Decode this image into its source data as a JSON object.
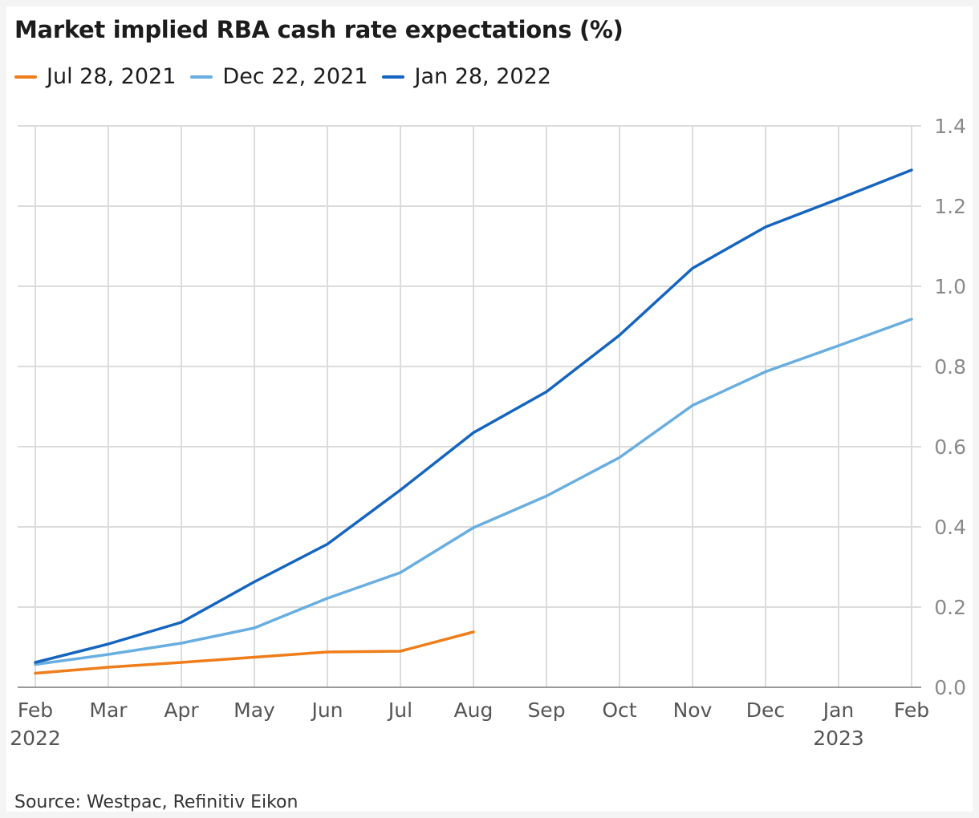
{
  "chart_data": {
    "type": "line",
    "title": "Market implied RBA cash rate expectations (%)",
    "source": "Source: Westpac, Refinitiv Eikon",
    "x_ticks": [
      "Feb",
      "Mar",
      "Apr",
      "May",
      "Jun",
      "Jul",
      "Aug",
      "Sep",
      "Oct",
      "Nov",
      "Dec",
      "Jan",
      "Feb"
    ],
    "x_year_labels": [
      {
        "index": 0,
        "label": "2022"
      },
      {
        "index": 11,
        "label": "2023"
      }
    ],
    "y_ticks": [
      "1.4",
      "1.2",
      "1.0",
      "0.8",
      "0.6",
      "0.4",
      "0.2",
      "0.0"
    ],
    "ylim": [
      0,
      1.4
    ],
    "grid": true,
    "y_axis_position": "right",
    "legend_position": "top-left",
    "series": [
      {
        "name": "Jul 28, 2021",
        "color": "#ef7d1a",
        "x": [
          "Feb 2022",
          "Mar 2022",
          "Apr 2022",
          "May 2022",
          "Jun 2022",
          "Jul 2022",
          "Aug 2022"
        ],
        "values": [
          0.035,
          0.05,
          0.062,
          0.075,
          0.088,
          0.09,
          0.138
        ]
      },
      {
        "name": "Dec 22, 2021",
        "color": "#69aee0",
        "x": [
          "Feb 2022",
          "Mar 2022",
          "Apr 2022",
          "May 2022",
          "Jun 2022",
          "Jul 2022",
          "Aug 2022",
          "Sep 2022",
          "Oct 2022",
          "Nov 2022",
          "Dec 2022",
          "Jan 2023",
          "Feb 2023"
        ],
        "values": [
          0.057,
          0.082,
          0.11,
          0.148,
          0.222,
          0.286,
          0.398,
          0.477,
          0.573,
          0.703,
          0.787,
          0.852,
          0.918
        ]
      },
      {
        "name": "Jan 28, 2022",
        "color": "#1565c0",
        "x": [
          "Feb 2022",
          "Mar 2022",
          "Apr 2022",
          "May 2022",
          "Jun 2022",
          "Jul 2022",
          "Aug 2022",
          "Sep 2022",
          "Oct 2022",
          "Nov 2022",
          "Dec 2022",
          "Jan 2023",
          "Feb 2023"
        ],
        "values": [
          0.062,
          0.108,
          0.162,
          0.263,
          0.357,
          0.492,
          0.635,
          0.737,
          0.878,
          1.045,
          1.148,
          1.218,
          1.29
        ]
      }
    ]
  }
}
